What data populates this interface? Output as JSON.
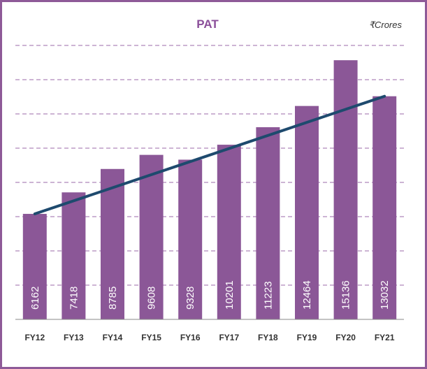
{
  "chart_data": {
    "type": "bar",
    "title": "PAT",
    "unit": "₹Crores",
    "categories": [
      "FY12",
      "FY13",
      "FY14",
      "FY15",
      "FY16",
      "FY17",
      "FY18",
      "FY19",
      "FY20",
      "FY21"
    ],
    "series": [
      {
        "values": [
          6162,
          7418,
          8785,
          9608,
          9328,
          10201,
          11223,
          12464,
          15136,
          13032
        ]
      }
    ],
    "trendline": {
      "type": "linear",
      "from": 6162,
      "to": 13032
    },
    "ylim": [
      0,
      16000
    ],
    "grid": true,
    "legend": "none"
  },
  "colors": {
    "bar": "#8b5797",
    "trendline": "#1e4a6e",
    "grid": "#9b6aa8",
    "frame": "#8e5a98",
    "title": "#8b4f9a"
  }
}
